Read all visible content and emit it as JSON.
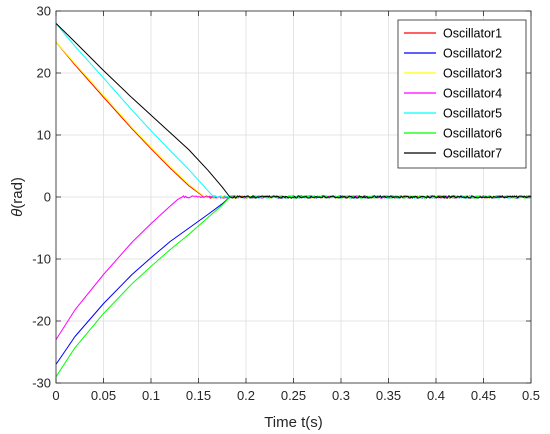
{
  "chart_data": {
    "type": "line",
    "title": "",
    "xlabel": "Time t(s)",
    "ylabel_symbol": "θ",
    "ylabel_unit": "(rad)",
    "xlim": [
      0,
      0.5
    ],
    "ylim": [
      -30,
      30
    ],
    "x_ticks": [
      0,
      0.05,
      0.1,
      0.15,
      0.2,
      0.25,
      0.3,
      0.35,
      0.4,
      0.45,
      0.5
    ],
    "x_tick_labels": [
      "0",
      "0.05",
      "0.1",
      "0.15",
      "0.2",
      "0.25",
      "0.3",
      "0.35",
      "0.4",
      "0.45",
      "0.5"
    ],
    "y_ticks": [
      -30,
      -20,
      -10,
      0,
      10,
      20,
      30
    ],
    "y_tick_labels": [
      "-30",
      "-20",
      "-10",
      "0",
      "10",
      "20",
      "30"
    ],
    "grid": true,
    "legend_position": "top-right",
    "series": [
      {
        "name": "Oscillator1",
        "color": "#ff0000",
        "x": [
          0,
          0.02,
          0.05,
          0.08,
          0.1,
          0.12,
          0.14,
          0.155,
          0.158,
          0.5
        ],
        "y": [
          25,
          21.3,
          16.1,
          11.0,
          7.8,
          4.7,
          1.8,
          0.1,
          0,
          0
        ]
      },
      {
        "name": "Oscillator2",
        "color": "#0000ff",
        "x": [
          0,
          0.02,
          0.05,
          0.08,
          0.1,
          0.12,
          0.14,
          0.16,
          0.175,
          0.183,
          0.5
        ],
        "y": [
          -27,
          -22.5,
          -17.2,
          -12.5,
          -9.8,
          -7.2,
          -5.0,
          -2.8,
          -1.1,
          0,
          0
        ]
      },
      {
        "name": "Oscillator3",
        "color": "#ffff00",
        "x": [
          0,
          0.02,
          0.05,
          0.08,
          0.1,
          0.12,
          0.14,
          0.155,
          0.158,
          0.5
        ],
        "y": [
          25,
          21.5,
          16.4,
          11.2,
          8.0,
          4.9,
          2.0,
          0.2,
          0,
          0
        ]
      },
      {
        "name": "Oscillator4",
        "color": "#ff00ff",
        "x": [
          0,
          0.02,
          0.05,
          0.08,
          0.1,
          0.12,
          0.128,
          0.133,
          0.5
        ],
        "y": [
          -23,
          -18.2,
          -12.5,
          -7.3,
          -4.3,
          -1.5,
          -0.4,
          0,
          0
        ]
      },
      {
        "name": "Oscillator5",
        "color": "#00ffff",
        "x": [
          0,
          0.02,
          0.05,
          0.08,
          0.1,
          0.12,
          0.14,
          0.16,
          0.166,
          0.5
        ],
        "y": [
          28,
          24.3,
          19.2,
          14.0,
          10.7,
          7.5,
          4.4,
          1.0,
          0,
          0
        ]
      },
      {
        "name": "Oscillator6",
        "color": "#00ff00",
        "x": [
          0,
          0.02,
          0.05,
          0.08,
          0.1,
          0.12,
          0.14,
          0.16,
          0.175,
          0.183,
          0.5
        ],
        "y": [
          -29,
          -24.3,
          -18.8,
          -14.0,
          -11.2,
          -8.5,
          -6.0,
          -3.3,
          -1.3,
          0,
          0
        ]
      },
      {
        "name": "Oscillator7",
        "color": "#000000",
        "x": [
          0,
          0.02,
          0.05,
          0.08,
          0.1,
          0.12,
          0.14,
          0.16,
          0.175,
          0.183,
          0.5
        ],
        "y": [
          28,
          25.0,
          20.4,
          16.0,
          13.2,
          10.4,
          7.6,
          4.3,
          1.6,
          0,
          0
        ]
      }
    ]
  }
}
